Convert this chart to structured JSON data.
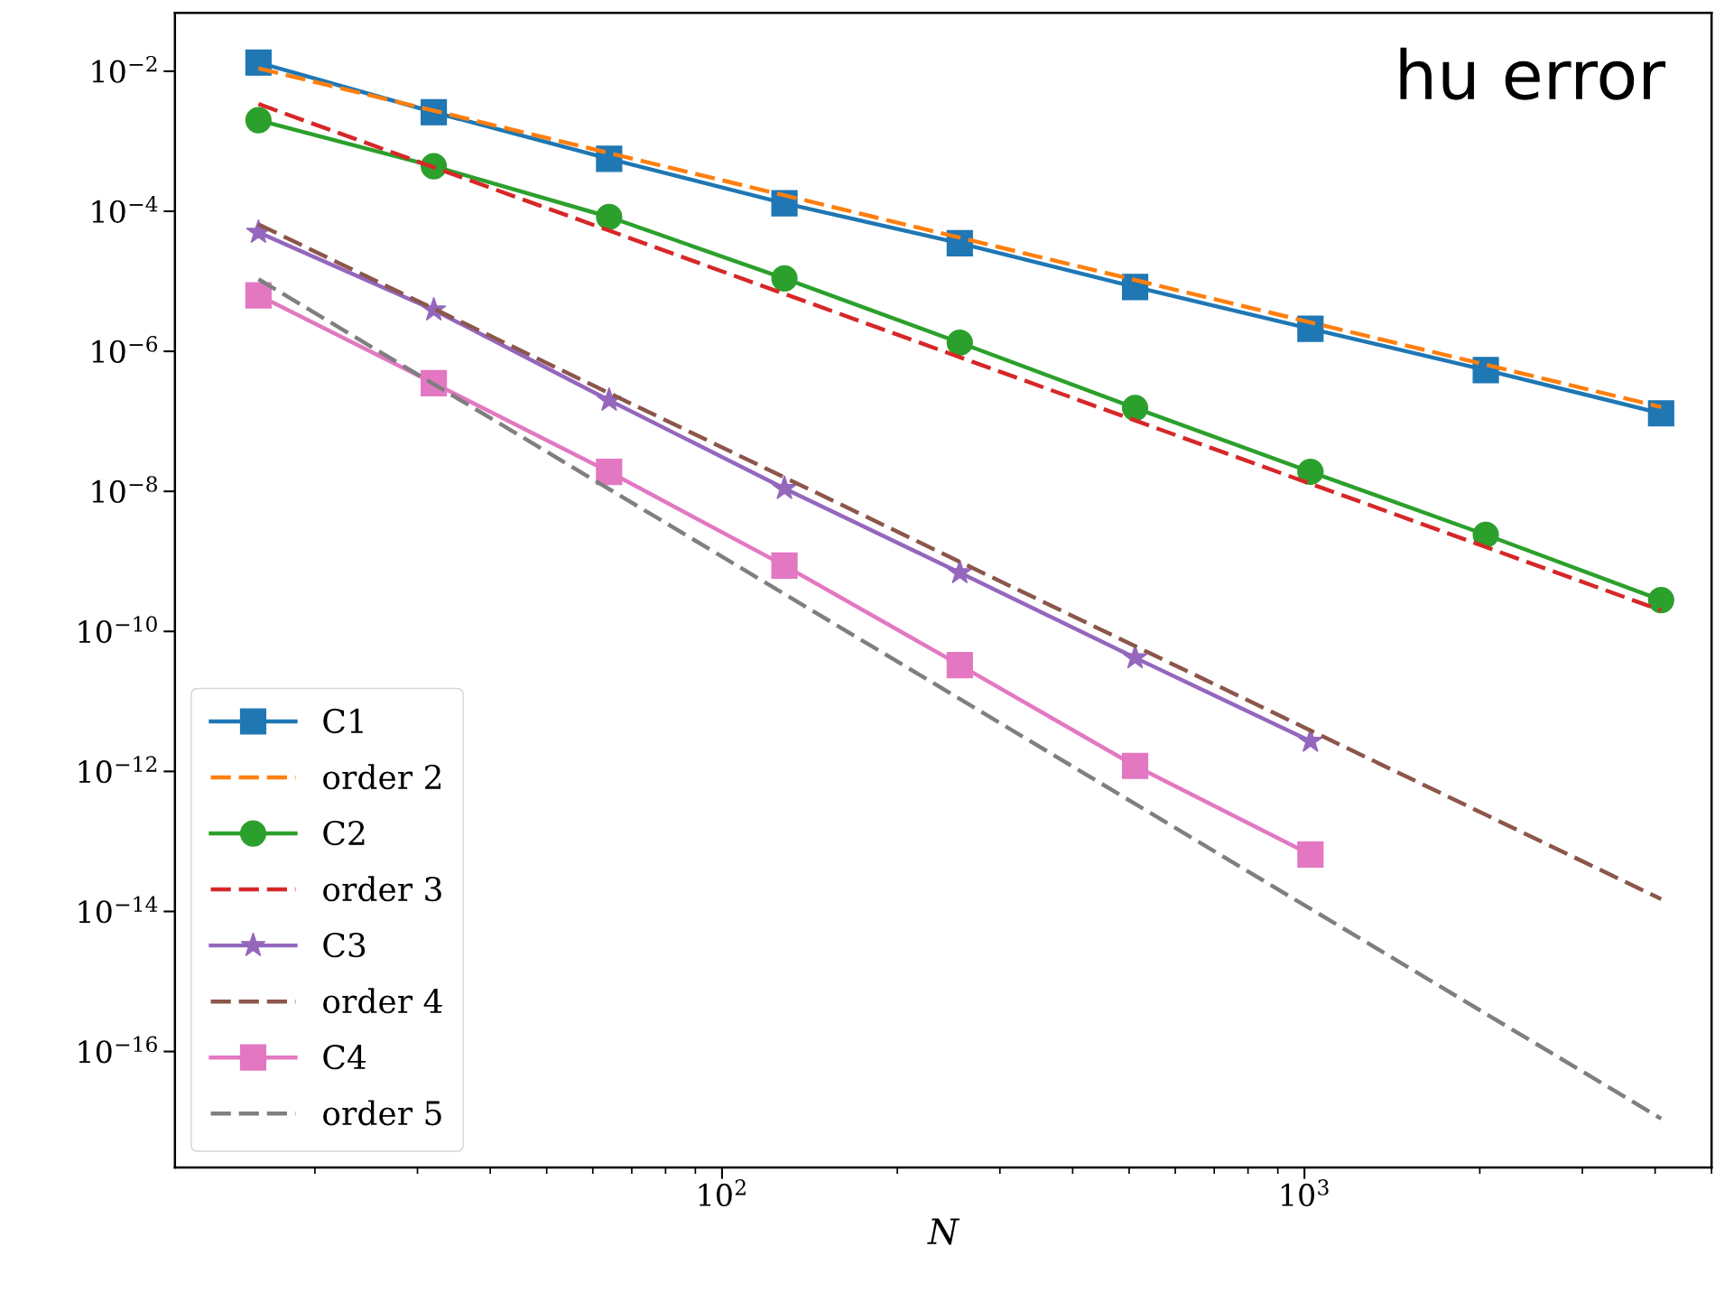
{
  "chart_data": {
    "type": "line",
    "xlabel": "N",
    "annotations": [
      "hu error"
    ],
    "x": [
      16,
      32,
      64,
      128,
      256,
      512,
      1024,
      2048,
      4096
    ],
    "series": [
      {
        "name": "C1",
        "color": "#1f77b4",
        "marker": "square",
        "line_style": "solid",
        "values": [
          0.0133,
          0.0026,
          0.00056,
          0.00013,
          3.5e-05,
          8.3e-06,
          2.1e-06,
          5.4e-07,
          1.3e-07
        ]
      },
      {
        "name": "order 2",
        "color": "#ff7f0e",
        "marker": "none",
        "line_style": "dashed",
        "x": [
          16,
          4096
        ],
        "values": [
          0.011,
          1.6e-07
        ]
      },
      {
        "name": "C2",
        "color": "#2ca02c",
        "marker": "circle",
        "line_style": "solid",
        "values": [
          0.002,
          0.00044,
          8.3e-05,
          1.1e-05,
          1.33e-06,
          1.55e-07,
          1.9e-08,
          2.4e-09,
          2.8e-10
        ]
      },
      {
        "name": "order 3",
        "color": "#d62728",
        "marker": "none",
        "line_style": "dashed",
        "x": [
          16,
          4096
        ],
        "values": [
          0.0034,
          2e-10
        ]
      },
      {
        "name": "C3",
        "color": "#9467bd",
        "marker": "star",
        "line_style": "solid",
        "x": [
          16,
          32,
          64,
          128,
          256,
          512,
          1024
        ],
        "values": [
          5e-05,
          3.9e-06,
          2e-07,
          1.1e-08,
          6.9e-10,
          4.2e-11,
          2.7e-12
        ]
      },
      {
        "name": "order 4",
        "color": "#8c564b",
        "marker": "none",
        "line_style": "dashed",
        "x": [
          16,
          4096
        ],
        "values": [
          6.5e-05,
          1.5e-14
        ]
      },
      {
        "name": "C4",
        "color": "#e377c2",
        "marker": "square",
        "line_style": "solid",
        "x": [
          16,
          32,
          64,
          128,
          256,
          512,
          1024
        ],
        "values": [
          6.3e-06,
          3.5e-07,
          1.9e-08,
          8.7e-10,
          3.3e-11,
          1.2e-12,
          6.5e-14
        ]
      },
      {
        "name": "order 5",
        "color": "#7f7f7f",
        "marker": "none",
        "line_style": "dashed",
        "x": [
          16,
          4096
        ],
        "values": [
          1.07e-05,
          1.1e-17
        ]
      }
    ],
    "log": "xy",
    "xlim": [
      11.5,
      5000
    ],
    "xticks": [
      {
        "value": 100,
        "label": "10$^{2}$"
      },
      {
        "value": 1000,
        "label": "10$^{3}$"
      }
    ],
    "ylim": [
      2.2e-18,
      0.068
    ],
    "yticks": [
      {
        "value": 0.01,
        "label": "10$^{−2}$"
      },
      {
        "value": 0.0001,
        "label": "10$^{−4}$"
      },
      {
        "value": 1e-06,
        "label": "10$^{−6}$"
      },
      {
        "value": 1e-08,
        "label": "10$^{−8}$"
      },
      {
        "value": 1e-10,
        "label": "10$^{−10}$"
      },
      {
        "value": 1e-12,
        "label": "10$^{−12}$"
      },
      {
        "value": 1e-14,
        "label": "10$^{−14}$"
      },
      {
        "value": 1e-16,
        "label": "10$^{−16}$"
      }
    ],
    "legend": "bottom left",
    "grid": false
  }
}
